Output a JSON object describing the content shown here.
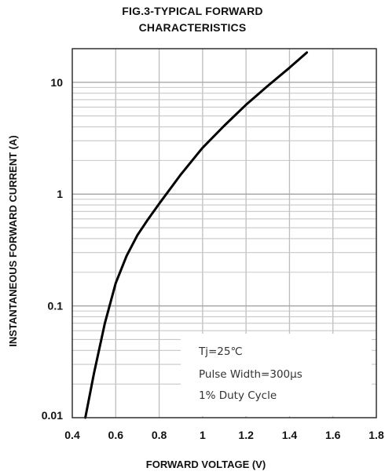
{
  "chart_data": {
    "type": "line",
    "title_lines": [
      "FIG.3-TYPICAL FORWARD",
      "CHARACTERISTICS"
    ],
    "xlabel": "FORWARD VOLTAGE (V)",
    "ylabel": "INSTANTANEOUS FORWARD CURRENT (A)",
    "xscale": "linear",
    "yscale": "log",
    "xlim": [
      0.4,
      1.8
    ],
    "ylim": [
      0.01,
      20
    ],
    "x_ticks": [
      "0.4",
      "0.6",
      "0.8",
      "1",
      "1.2",
      "1.4",
      "1.6",
      "1.8"
    ],
    "x_tick_values": [
      0.4,
      0.6,
      0.8,
      1.0,
      1.2,
      1.4,
      1.6,
      1.8
    ],
    "y_ticks": [
      "0.01",
      "0.1",
      "1",
      "10"
    ],
    "y_tick_values": [
      0.01,
      0.1,
      1,
      10
    ],
    "grid": true,
    "series": [
      {
        "x": [
          0.46,
          0.5,
          0.55,
          0.6,
          0.65,
          0.7,
          0.75,
          0.8,
          0.9,
          1.0,
          1.1,
          1.2,
          1.3,
          1.4,
          1.48
        ],
        "values": [
          0.01,
          0.025,
          0.07,
          0.16,
          0.28,
          0.43,
          0.6,
          0.82,
          1.5,
          2.6,
          4.1,
          6.3,
          9.3,
          13.5,
          18.5
        ]
      }
    ],
    "annotation": [
      "Tj=25℃",
      "Pulse Width=300μs",
      "1% Duty Cycle"
    ]
  }
}
